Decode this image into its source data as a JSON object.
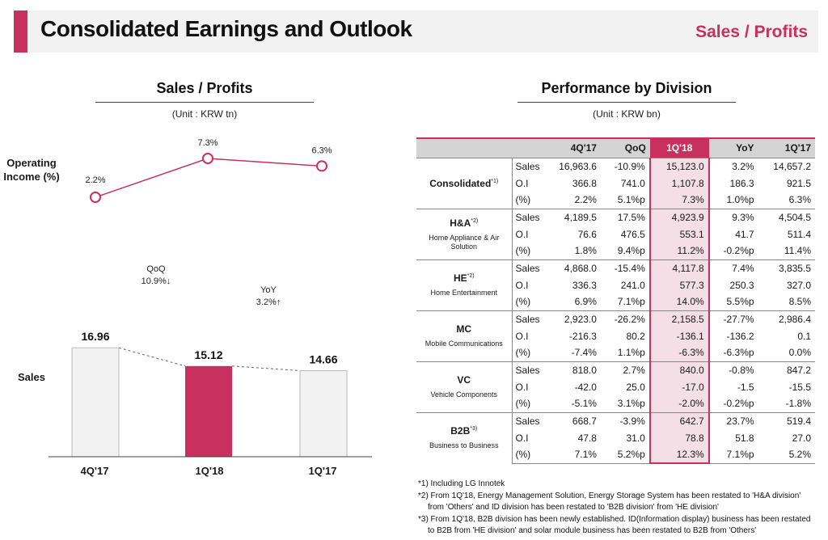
{
  "header": {
    "title": "Consolidated Earnings and Outlook",
    "right_label": "Sales / Profits"
  },
  "left": {
    "title": "Sales / Profits",
    "unit": "(Unit : KRW tn)",
    "oi_label": "Operating Income (%)",
    "sales_label": "Sales",
    "qoq_label": "QoQ",
    "qoq_value": "10.9%↓",
    "yoy_label": "YoY",
    "yoy_value": "3.2%↑"
  },
  "chart_data": [
    {
      "type": "line",
      "categories": [
        "4Q'17",
        "1Q'18",
        "1Q'17"
      ],
      "values": [
        2.2,
        7.3,
        6.3
      ],
      "labels": [
        "2.2%",
        "7.3%",
        "6.3%"
      ],
      "ylabel": "Operating Income (%)",
      "color": "#c8305f"
    },
    {
      "type": "bar",
      "categories": [
        "4Q'17",
        "1Q'18",
        "1Q'17"
      ],
      "values": [
        16.96,
        15.12,
        14.66
      ],
      "labels": [
        "16.96",
        "15.12",
        "14.66"
      ],
      "ylabel": "Sales",
      "colors": [
        "#f2f2f2",
        "#c8305f",
        "#f2f2f2"
      ]
    }
  ],
  "right": {
    "title": "Performance by Division",
    "unit": "(Unit : KRW bn)",
    "columns": [
      "4Q'17",
      "QoQ",
      "1Q'18",
      "YoY",
      "1Q'17"
    ],
    "divisions": [
      {
        "name": "Consolidated",
        "sup": "*1)",
        "sub": "",
        "rows": [
          {
            "metric": "Sales",
            "values": [
              "16,963.6",
              "-10.9%",
              "15,123.0",
              "3.2%",
              "14,657.2"
            ]
          },
          {
            "metric": "O.I",
            "values": [
              "366.8",
              "741.0",
              "1,107.8",
              "186.3",
              "921.5"
            ]
          },
          {
            "metric": "(%)",
            "values": [
              "2.2%",
              "5.1%p",
              "7.3%",
              "1.0%p",
              "6.3%"
            ]
          }
        ]
      },
      {
        "name": "H&A",
        "sup": "*2)",
        "sub": "Home Appliance & Air Solution",
        "rows": [
          {
            "metric": "Sales",
            "values": [
              "4,189.5",
              "17.5%",
              "4,923.9",
              "9.3%",
              "4,504.5"
            ]
          },
          {
            "metric": "O.I",
            "values": [
              "76.6",
              "476.5",
              "553.1",
              "41.7",
              "511.4"
            ]
          },
          {
            "metric": "(%)",
            "values": [
              "1.8%",
              "9.4%p",
              "11.2%",
              "-0.2%p",
              "11.4%"
            ]
          }
        ]
      },
      {
        "name": "HE",
        "sup": "*2)",
        "sub": "Home Entertainment",
        "rows": [
          {
            "metric": "Sales",
            "values": [
              "4,868.0",
              "-15.4%",
              "4,117.8",
              "7.4%",
              "3,835.5"
            ]
          },
          {
            "metric": "O.I",
            "values": [
              "336.3",
              "241.0",
              "577.3",
              "250.3",
              "327.0"
            ]
          },
          {
            "metric": "(%)",
            "values": [
              "6.9%",
              "7.1%p",
              "14.0%",
              "5.5%p",
              "8.5%"
            ]
          }
        ]
      },
      {
        "name": "MC",
        "sup": "",
        "sub": "Mobile Communications",
        "rows": [
          {
            "metric": "Sales",
            "values": [
              "2,923.0",
              "-26.2%",
              "2,158.5",
              "-27.7%",
              "2,986.4"
            ]
          },
          {
            "metric": "O.I",
            "values": [
              "-216.3",
              "80.2",
              "-136.1",
              "-136.2",
              "0.1"
            ]
          },
          {
            "metric": "(%)",
            "values": [
              "-7.4%",
              "1.1%p",
              "-6.3%",
              "-6.3%p",
              "0.0%"
            ]
          }
        ]
      },
      {
        "name": "VC",
        "sup": "",
        "sub": "Vehicle Components",
        "rows": [
          {
            "metric": "Sales",
            "values": [
              "818.0",
              "2.7%",
              "840.0",
              "-0.8%",
              "847.2"
            ]
          },
          {
            "metric": "O.I",
            "values": [
              "-42.0",
              "25.0",
              "-17.0",
              "-1.5",
              "-15.5"
            ]
          },
          {
            "metric": "(%)",
            "values": [
              "-5.1%",
              "3.1%p",
              "-2.0%",
              "-0.2%p",
              "-1.8%"
            ]
          }
        ]
      },
      {
        "name": "B2B",
        "sup": "*3)",
        "sub": "Business to Business",
        "rows": [
          {
            "metric": "Sales",
            "values": [
              "668.7",
              "-3.9%",
              "642.7",
              "23.7%",
              "519.4"
            ]
          },
          {
            "metric": "O.I",
            "values": [
              "47.8",
              "31.0",
              "78.8",
              "51.8",
              "27.0"
            ]
          },
          {
            "metric": "(%)",
            "values": [
              "7.1%",
              "5.2%p",
              "12.3%",
              "7.1%p",
              "5.2%"
            ]
          }
        ]
      }
    ]
  },
  "footnotes": [
    {
      "text": "*1) Including LG Innotek",
      "indent": false
    },
    {
      "text": "*2) From 1Q'18, Energy Management Solution, Energy Storage System has been restated to 'H&A division'",
      "indent": false
    },
    {
      "text": "from 'Others' and ID division has been restated to 'B2B division' from 'HE division'",
      "indent": true
    },
    {
      "text": "*3) From 1Q'18, B2B division has been newly established. ID(Information display) business has been restated",
      "indent": false
    },
    {
      "text": "to B2B from 'HE division' and solar module business has been restated to B2B from 'Others'",
      "indent": true
    }
  ]
}
